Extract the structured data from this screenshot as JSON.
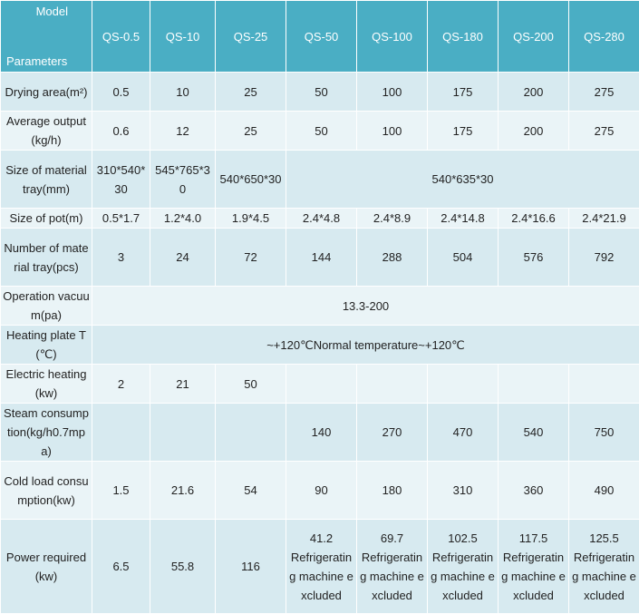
{
  "header": {
    "model_label": "Model",
    "parameters_label": "Parameters",
    "models": [
      "QS-0.5",
      "QS-10",
      "QS-25",
      "QS-50",
      "QS-100",
      "QS-180",
      "QS-200",
      "QS-280"
    ]
  },
  "rows": {
    "drying_area": {
      "label": "Drying area(m²)",
      "values": [
        "0.5",
        "10",
        "25",
        "50",
        "100",
        "175",
        "200",
        "275"
      ]
    },
    "average_output": {
      "label": "Average output(kg/h)",
      "values": [
        "0.6",
        "12",
        "25",
        "50",
        "100",
        "175",
        "200",
        "275"
      ]
    },
    "tray_size": {
      "label": "Size of material tray(mm)",
      "values": [
        "310*540*30",
        "545*765*30",
        "540*650*30"
      ],
      "merged": "540*635*30"
    },
    "pot_size": {
      "label": "Size of pot(m)",
      "values": [
        "0.5*1.7",
        "1.2*4.0",
        "1.9*4.5",
        "2.4*4.8",
        "2.4*8.9",
        "2.4*14.8",
        "2.4*16.6",
        "2.4*21.9"
      ]
    },
    "tray_number": {
      "label": "Number of material tray(pcs)",
      "values": [
        "3",
        "24",
        "72",
        "144",
        "288",
        "504",
        "576",
        "792"
      ]
    },
    "operation_vacuum": {
      "label": "Operation vacuum(pa)",
      "merged": "13.3-200"
    },
    "heating_plate": {
      "label": "Heating plate T(℃)",
      "merged": "~+120℃Normal temperature~+120℃"
    },
    "electric_heating": {
      "label": "Electric heating(kw)",
      "values": [
        "2",
        "21",
        "50",
        "",
        "",
        "",
        "",
        ""
      ]
    },
    "steam_consumption": {
      "label": "Steam consumption(kg/h0.7mpa)",
      "values": [
        "",
        "",
        "",
        "140",
        "270",
        "470",
        "540",
        "750"
      ]
    },
    "cold_load": {
      "label": "Cold load consumption(kw)",
      "values": [
        "1.5",
        "21.6",
        "54",
        "90",
        "180",
        "310",
        "360",
        "490"
      ]
    },
    "power_required": {
      "label": "Power required(kw)",
      "values": [
        "6.5",
        "55.8",
        "116"
      ],
      "note_values": [
        "41.2",
        "69.7",
        "102.5",
        "117.5",
        "125.5"
      ],
      "note_text": "Refrigerating machine excluded"
    }
  }
}
